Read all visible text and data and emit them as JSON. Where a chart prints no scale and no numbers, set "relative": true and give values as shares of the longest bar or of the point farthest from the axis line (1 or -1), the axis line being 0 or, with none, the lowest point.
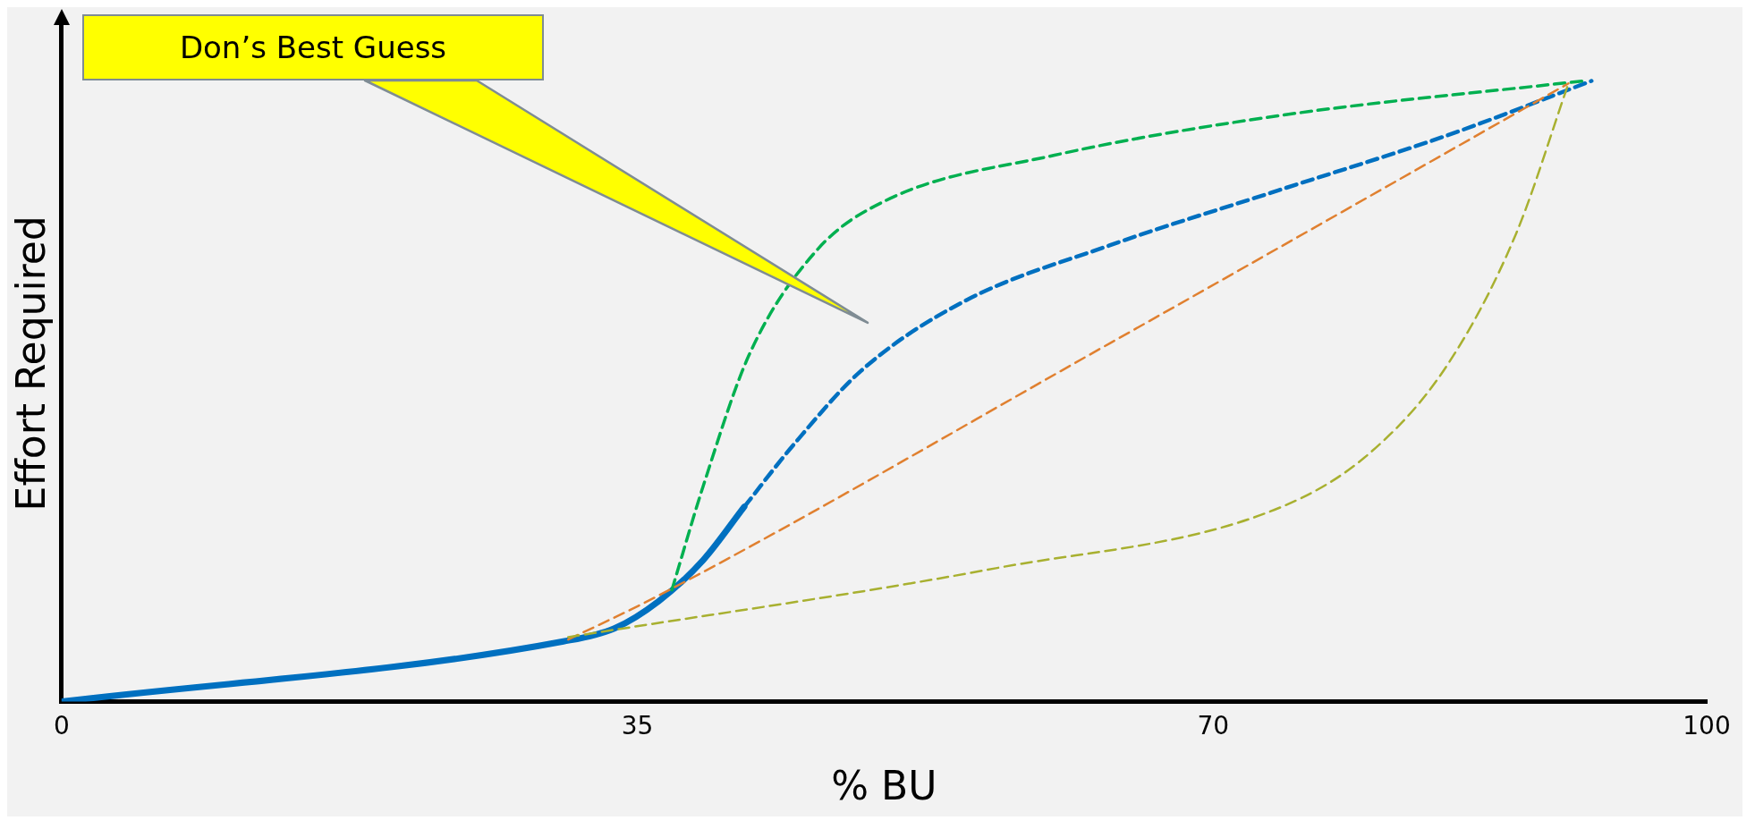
{
  "chart_data": {
    "type": "line",
    "relative": true,
    "xlabel": "% BU",
    "ylabel": "Effort Required",
    "xlim": [
      0,
      100
    ],
    "xticks": [
      0,
      35,
      70,
      100
    ],
    "grid": false,
    "legend": false,
    "marker": "none",
    "annotations": [
      "Don’s Best Guess"
    ],
    "series": [
      {
        "color": "#0070c0",
        "line_style": "solid",
        "x": [
          0,
          30.5,
          33.6,
          36.3,
          39.0,
          41.5
        ],
        "values": [
          0,
          0.097,
          0.118,
          0.162,
          0.228,
          0.314
        ]
      },
      {
        "color": "#0070c0",
        "line_style": "dashed",
        "x": [
          41.5,
          44.5,
          48.6,
          54.8,
          63.7,
          74.0,
          84.2,
          93.0
        ],
        "values": [
          0.314,
          0.414,
          0.533,
          0.644,
          0.735,
          0.824,
          0.912,
          1
        ]
      },
      {
        "color": "#00b050",
        "line_style": "dashed",
        "x": [
          37.1,
          39.0,
          41.8,
          45.9,
          50.0,
          60.3,
          74.0,
          92.5
        ],
        "values": [
          0.18,
          0.347,
          0.559,
          0.727,
          0.806,
          0.88,
          0.944,
          1
        ]
      },
      {
        "color": "#e08030",
        "line_style": "dashed",
        "x": [
          30.8,
          36.3,
          63.7,
          91.6
        ],
        "values": [
          0.1,
          0.171,
          0.577,
          0.996
        ]
      },
      {
        "color": "#a8b030",
        "line_style": "dashed",
        "x": [
          30.8,
          56.8,
          74.0,
          79.5,
          84.2,
          88.4,
          91.6
        ],
        "values": [
          0.104,
          0.215,
          0.312,
          0.4,
          0.541,
          0.753,
          0.996
        ]
      }
    ]
  }
}
